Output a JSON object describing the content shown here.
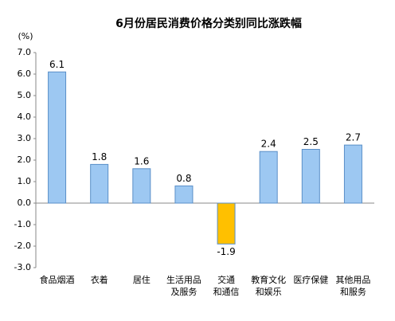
{
  "chart_data": {
    "type": "bar",
    "title": "6月份居民消费价格分类别同比涨跌幅",
    "y_unit": "(%)",
    "categories": [
      "食品烟酒",
      "衣着",
      "居住",
      "生活用品\n及服务",
      "交通\n和通信",
      "教育文化\n和娱乐",
      "医疗保健",
      "其他用品\n和服务"
    ],
    "values": [
      6.1,
      1.8,
      1.6,
      0.8,
      -1.9,
      2.4,
      2.5,
      2.7
    ],
    "colors": [
      "#9dc8f2",
      "#9dc8f2",
      "#9dc8f2",
      "#9dc8f2",
      "#ffc000",
      "#9dc8f2",
      "#9dc8f2",
      "#9dc8f2"
    ],
    "ylim": [
      -3,
      7
    ],
    "yticks": [
      {
        "value": -3,
        "label": "-3.0"
      },
      {
        "value": -2,
        "label": "-2.0"
      },
      {
        "value": -1,
        "label": "-1.0"
      },
      {
        "value": 0,
        "label": "0.0"
      },
      {
        "value": 1,
        "label": "1.0"
      },
      {
        "value": 2,
        "label": "2.0"
      },
      {
        "value": 3,
        "label": "3.0"
      },
      {
        "value": 4,
        "label": "4.0"
      },
      {
        "value": 5,
        "label": "5.0"
      },
      {
        "value": 6,
        "label": "6.0"
      },
      {
        "value": 7,
        "label": "7.0"
      }
    ],
    "grid": false
  }
}
